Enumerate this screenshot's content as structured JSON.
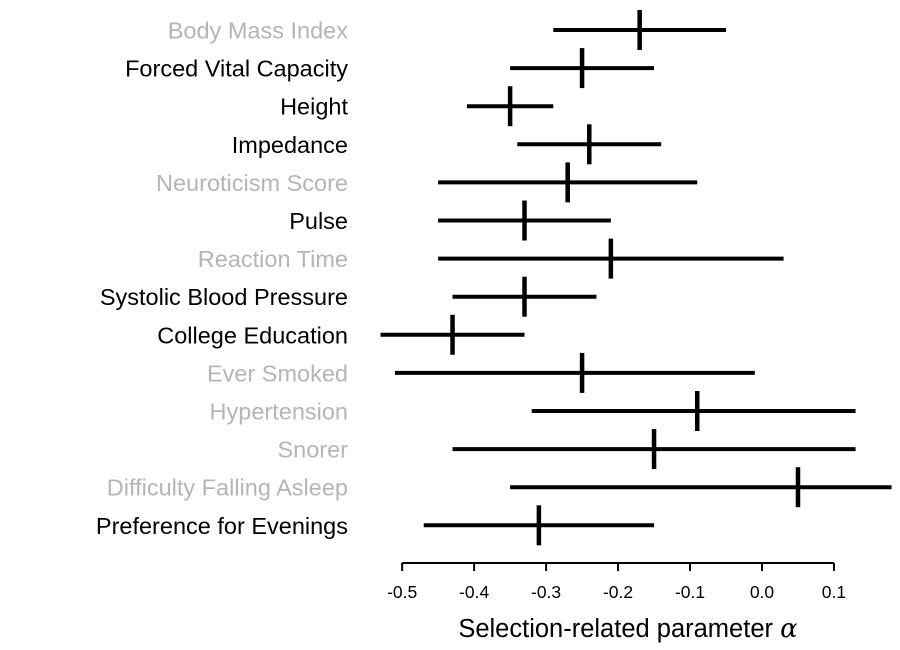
{
  "chart_data": {
    "type": "forest",
    "title": "",
    "xlabel": "Selection-related parameter α",
    "xlabel_main": "Selection-related parameter",
    "xlabel_symbol": "α",
    "xlim": [
      -0.5,
      0.1
    ],
    "x_ticks": [
      -0.5,
      -0.4,
      -0.3,
      -0.2,
      -0.1,
      0.0,
      0.1
    ],
    "x_tick_labels": [
      "-0.5",
      "-0.4",
      "-0.3",
      "-0.2",
      "-0.1",
      "0.0",
      "0.1"
    ],
    "legend": "none",
    "grid": false,
    "rows": [
      {
        "label": "Body Mass Index",
        "estimate": -0.17,
        "ci_low": -0.29,
        "ci_high": -0.05,
        "label_color": "gray"
      },
      {
        "label": "Forced Vital Capacity",
        "estimate": -0.25,
        "ci_low": -0.35,
        "ci_high": -0.15,
        "label_color": "black"
      },
      {
        "label": "Height",
        "estimate": -0.35,
        "ci_low": -0.41,
        "ci_high": -0.29,
        "label_color": "black"
      },
      {
        "label": "Impedance",
        "estimate": -0.24,
        "ci_low": -0.34,
        "ci_high": -0.14,
        "label_color": "black"
      },
      {
        "label": "Neuroticism Score",
        "estimate": -0.27,
        "ci_low": -0.45,
        "ci_high": -0.09,
        "label_color": "gray"
      },
      {
        "label": "Pulse",
        "estimate": -0.33,
        "ci_low": -0.45,
        "ci_high": -0.21,
        "label_color": "black"
      },
      {
        "label": "Reaction Time",
        "estimate": -0.21,
        "ci_low": -0.45,
        "ci_high": 0.03,
        "label_color": "gray"
      },
      {
        "label": "Systolic Blood Pressure",
        "estimate": -0.33,
        "ci_low": -0.43,
        "ci_high": -0.23,
        "label_color": "black"
      },
      {
        "label": "College Education",
        "estimate": -0.43,
        "ci_low": -0.53,
        "ci_high": -0.33,
        "label_color": "black"
      },
      {
        "label": "Ever Smoked",
        "estimate": -0.25,
        "ci_low": -0.51,
        "ci_high": -0.01,
        "label_color": "gray"
      },
      {
        "label": "Hypertension",
        "estimate": -0.09,
        "ci_low": -0.32,
        "ci_high": 0.13,
        "label_color": "gray"
      },
      {
        "label": "Snorer",
        "estimate": -0.15,
        "ci_low": -0.43,
        "ci_high": 0.13,
        "label_color": "gray"
      },
      {
        "label": "Difficulty Falling Asleep",
        "estimate": 0.05,
        "ci_low": -0.35,
        "ci_high": 0.18,
        "label_color": "gray"
      },
      {
        "label": "Preference for Evenings",
        "estimate": -0.31,
        "ci_low": -0.47,
        "ci_high": -0.15,
        "label_color": "black"
      }
    ]
  },
  "colors": {
    "black": "#000000",
    "gray": "#b5b5b5",
    "axis": "#000000",
    "background": "#ffffff"
  }
}
